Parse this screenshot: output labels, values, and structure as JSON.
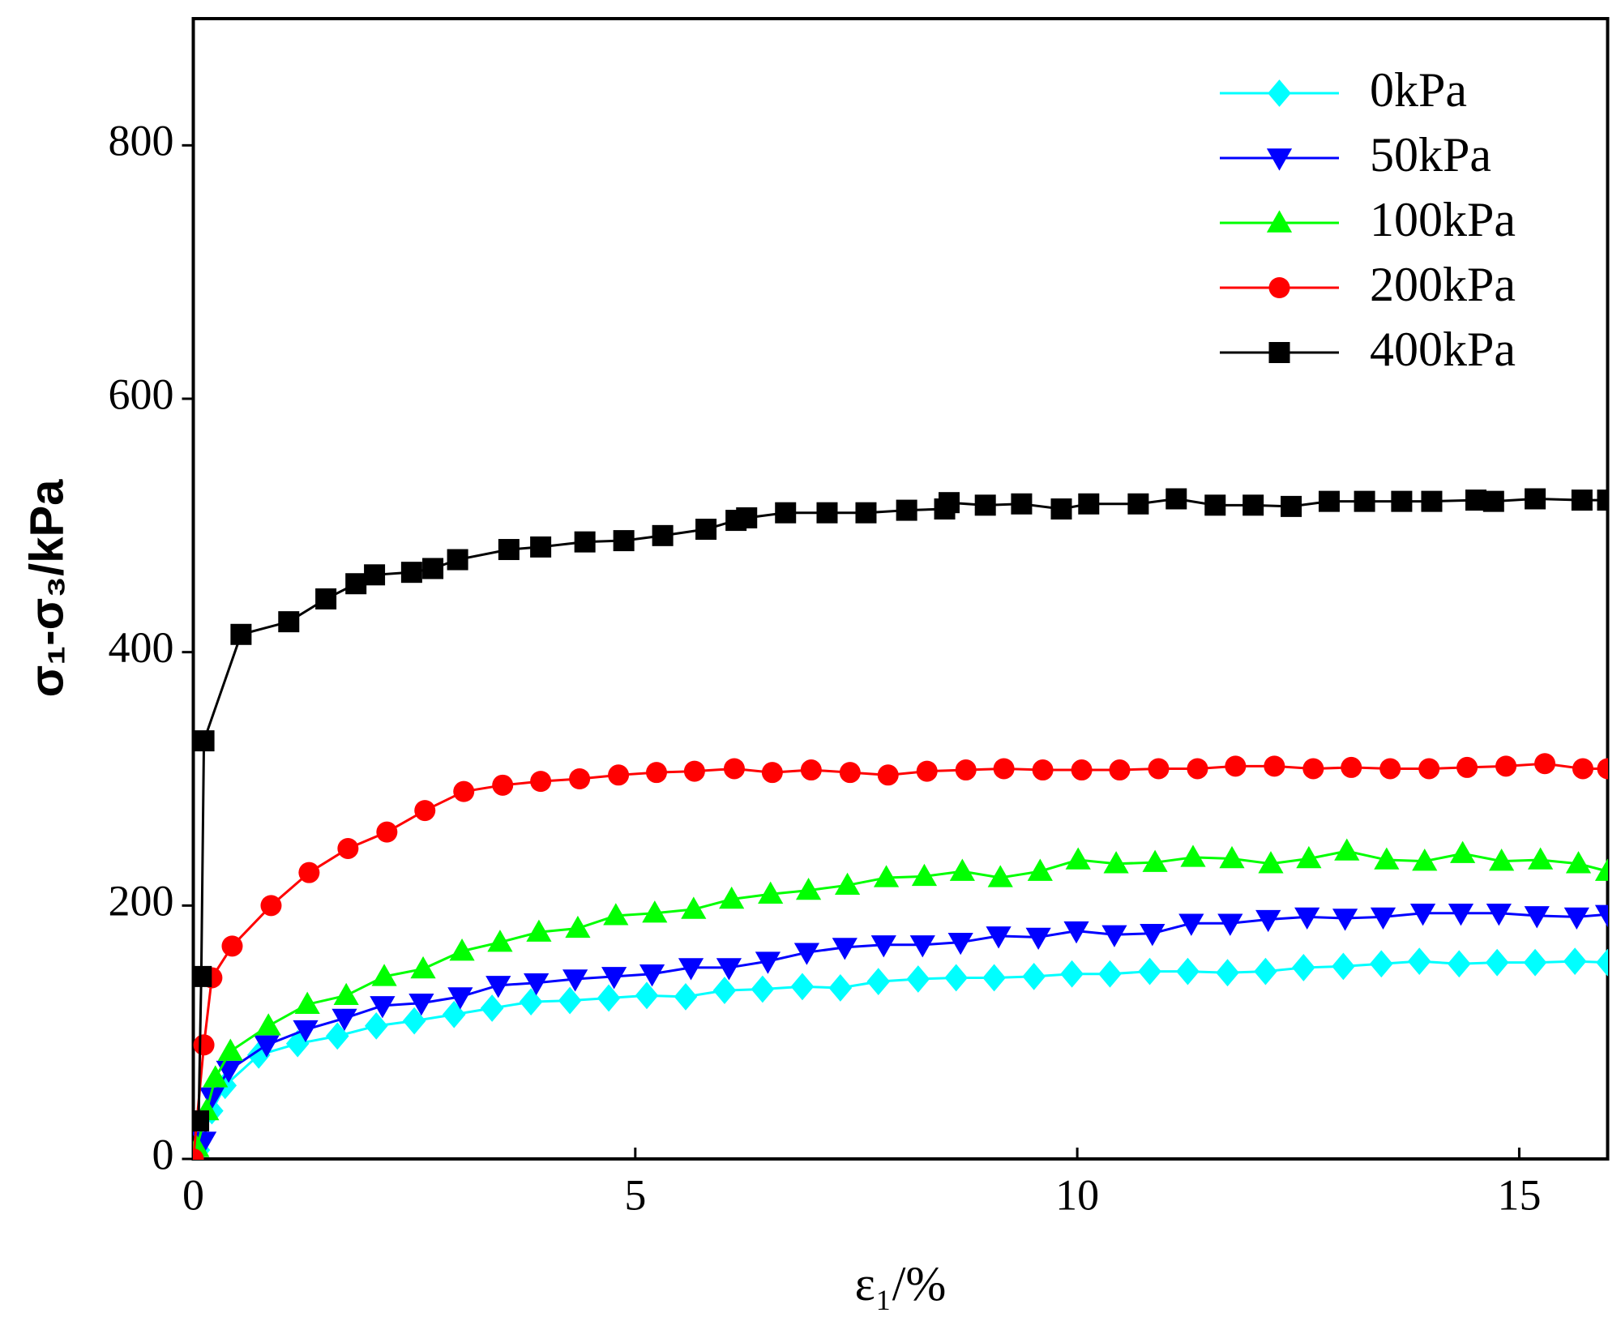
{
  "chart_data": {
    "type": "line",
    "xlabel": "ε₁/%",
    "ylabel": "σ₁-σ₃/kPa",
    "xlim": [
      0,
      16
    ],
    "ylim": [
      0,
      900
    ],
    "xticks": [
      0,
      5,
      10,
      15
    ],
    "yticks": [
      0,
      200,
      400,
      600,
      800
    ],
    "legend": "upper right",
    "series": [
      {
        "name": "0kPa",
        "color": "#00ffff",
        "marker": "diamond",
        "x": [
          0.06,
          0.21,
          0.36,
          0.74,
          1.18,
          1.63,
          2.07,
          2.5,
          2.95,
          3.38,
          3.82,
          4.26,
          4.7,
          5.13,
          5.57,
          6.01,
          6.44,
          6.89,
          7.32,
          7.75,
          8.2,
          8.63,
          9.06,
          9.51,
          9.94,
          10.37,
          10.82,
          11.25,
          11.7,
          12.13,
          12.56,
          13.01,
          13.44,
          13.87,
          14.32,
          14.75,
          15.18,
          15.63,
          16
        ],
        "values": [
          7,
          38,
          58,
          82,
          91,
          97,
          105,
          109,
          114,
          119,
          124,
          125,
          127,
          129,
          128,
          133,
          134,
          136,
          135,
          140,
          142,
          143,
          143,
          144,
          146,
          146,
          148,
          148,
          147,
          148,
          151,
          152,
          154,
          156,
          154,
          155,
          155,
          156,
          155
        ]
      },
      {
        "name": "50kPa",
        "color": "#0000ff",
        "marker": "triangle-down",
        "x": [
          0.02,
          0.12,
          0.21,
          0.4,
          0.83,
          1.27,
          1.71,
          2.14,
          2.58,
          3.02,
          3.45,
          3.88,
          4.32,
          4.76,
          5.19,
          5.63,
          6.06,
          6.5,
          6.94,
          7.37,
          7.81,
          8.25,
          8.68,
          9.11,
          9.56,
          9.99,
          10.42,
          10.85,
          11.29,
          11.73,
          12.16,
          12.6,
          13.03,
          13.46,
          13.91,
          14.34,
          14.77,
          15.2,
          15.65,
          16
        ],
        "values": [
          4,
          14,
          49,
          70,
          90,
          102,
          111,
          121,
          123,
          128,
          137,
          139,
          142,
          144,
          146,
          151,
          151,
          156,
          163,
          167,
          169,
          169,
          171,
          176,
          175,
          180,
          177,
          178,
          186,
          186,
          189,
          191,
          190,
          191,
          194,
          194,
          194,
          192,
          191,
          193
        ]
      },
      {
        "name": "100kPa",
        "color": "#00ff00",
        "marker": "triangle-up",
        "x": [
          0.04,
          0.15,
          0.25,
          0.42,
          0.85,
          1.29,
          1.73,
          2.16,
          2.6,
          3.04,
          3.47,
          3.91,
          4.35,
          4.78,
          5.22,
          5.66,
          6.09,
          6.53,
          6.96,
          7.4,
          7.84,
          8.27,
          8.7,
          9.13,
          9.58,
          10.01,
          10.44,
          10.88,
          11.31,
          11.75,
          12.19,
          12.62,
          13.05,
          13.5,
          13.93,
          14.36,
          14.8,
          15.24,
          15.67,
          16
        ],
        "values": [
          9,
          38,
          64,
          85,
          105,
          122,
          129,
          144,
          150,
          164,
          171,
          179,
          182,
          192,
          194,
          197,
          205,
          209,
          212,
          216,
          222,
          223,
          227,
          222,
          227,
          236,
          233,
          234,
          238,
          237,
          233,
          237,
          243,
          236,
          235,
          241,
          235,
          236,
          233,
          227
        ]
      },
      {
        "name": "200kPa",
        "color": "#ff0000",
        "marker": "circle",
        "x": [
          0,
          0.12,
          0.21,
          0.44,
          0.88,
          1.31,
          1.75,
          2.19,
          2.62,
          3.06,
          3.5,
          3.93,
          4.37,
          4.81,
          5.24,
          5.67,
          6.12,
          6.55,
          6.99,
          7.43,
          7.86,
          8.3,
          8.74,
          9.17,
          9.61,
          10.05,
          10.48,
          10.92,
          11.36,
          11.79,
          12.23,
          12.67,
          13.1,
          13.54,
          13.98,
          14.41,
          14.85,
          15.29,
          15.72,
          16
        ],
        "values": [
          0,
          90,
          143,
          168,
          200,
          226,
          245,
          258,
          275,
          290,
          295,
          298,
          300,
          303,
          305,
          306,
          308,
          305,
          307,
          305,
          303,
          306,
          307,
          308,
          307,
          307,
          307,
          308,
          308,
          310,
          310,
          308,
          309,
          308,
          308,
          309,
          310,
          312,
          308,
          308
        ]
      },
      {
        "name": "400kPa",
        "color": "#000000",
        "marker": "square",
        "x": [
          0.06,
          0.09,
          0.12,
          0.54,
          1.08,
          1.5,
          1.84,
          2.05,
          2.47,
          2.71,
          2.99,
          3.57,
          3.93,
          4.43,
          4.87,
          5.31,
          5.8,
          6.14,
          6.26,
          6.7,
          7.17,
          7.61,
          8.07,
          8.5,
          8.55,
          8.96,
          9.37,
          9.82,
          10.13,
          10.69,
          11.12,
          11.56,
          11.99,
          12.42,
          12.85,
          13.25,
          13.67,
          14.01,
          14.51,
          14.71,
          15.18,
          15.71,
          16
        ],
        "values": [
          30,
          144,
          330,
          414,
          424,
          442,
          454,
          461,
          463,
          466,
          473,
          481,
          483,
          487,
          488,
          492,
          497,
          504,
          506,
          510,
          510,
          510,
          512,
          513,
          518,
          516,
          517,
          513,
          517,
          517,
          521,
          516,
          516,
          515,
          519,
          519,
          519,
          519,
          520,
          519,
          521,
          520,
          520
        ]
      }
    ]
  }
}
